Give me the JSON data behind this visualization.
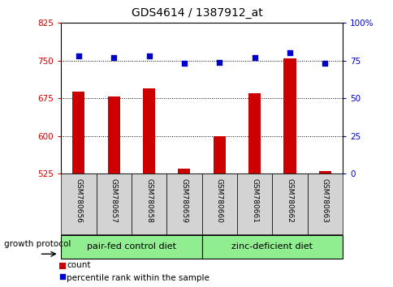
{
  "title": "GDS4614 / 1387912_at",
  "samples": [
    "GSM780656",
    "GSM780657",
    "GSM780658",
    "GSM780659",
    "GSM780660",
    "GSM780661",
    "GSM780662",
    "GSM780663"
  ],
  "counts": [
    688,
    678,
    695,
    535,
    600,
    685,
    755,
    530
  ],
  "percentiles": [
    78,
    77,
    78,
    73,
    74,
    77,
    80,
    73
  ],
  "ylim_left": [
    525,
    825
  ],
  "ylim_right": [
    0,
    100
  ],
  "yticks_left": [
    525,
    600,
    675,
    750,
    825
  ],
  "yticks_right": [
    0,
    25,
    50,
    75,
    100
  ],
  "yticklabels_right": [
    "0",
    "25",
    "50",
    "75",
    "100%"
  ],
  "bar_color": "#cc0000",
  "dot_color": "#0000cc",
  "group1_label": "pair-fed control diet",
  "group2_label": "zinc-deficient diet",
  "group_bg_color": "#90ee90",
  "sample_bg_color": "#d3d3d3",
  "legend_count_label": "count",
  "legend_pct_label": "percentile rank within the sample",
  "growth_protocol_label": "growth protocol"
}
